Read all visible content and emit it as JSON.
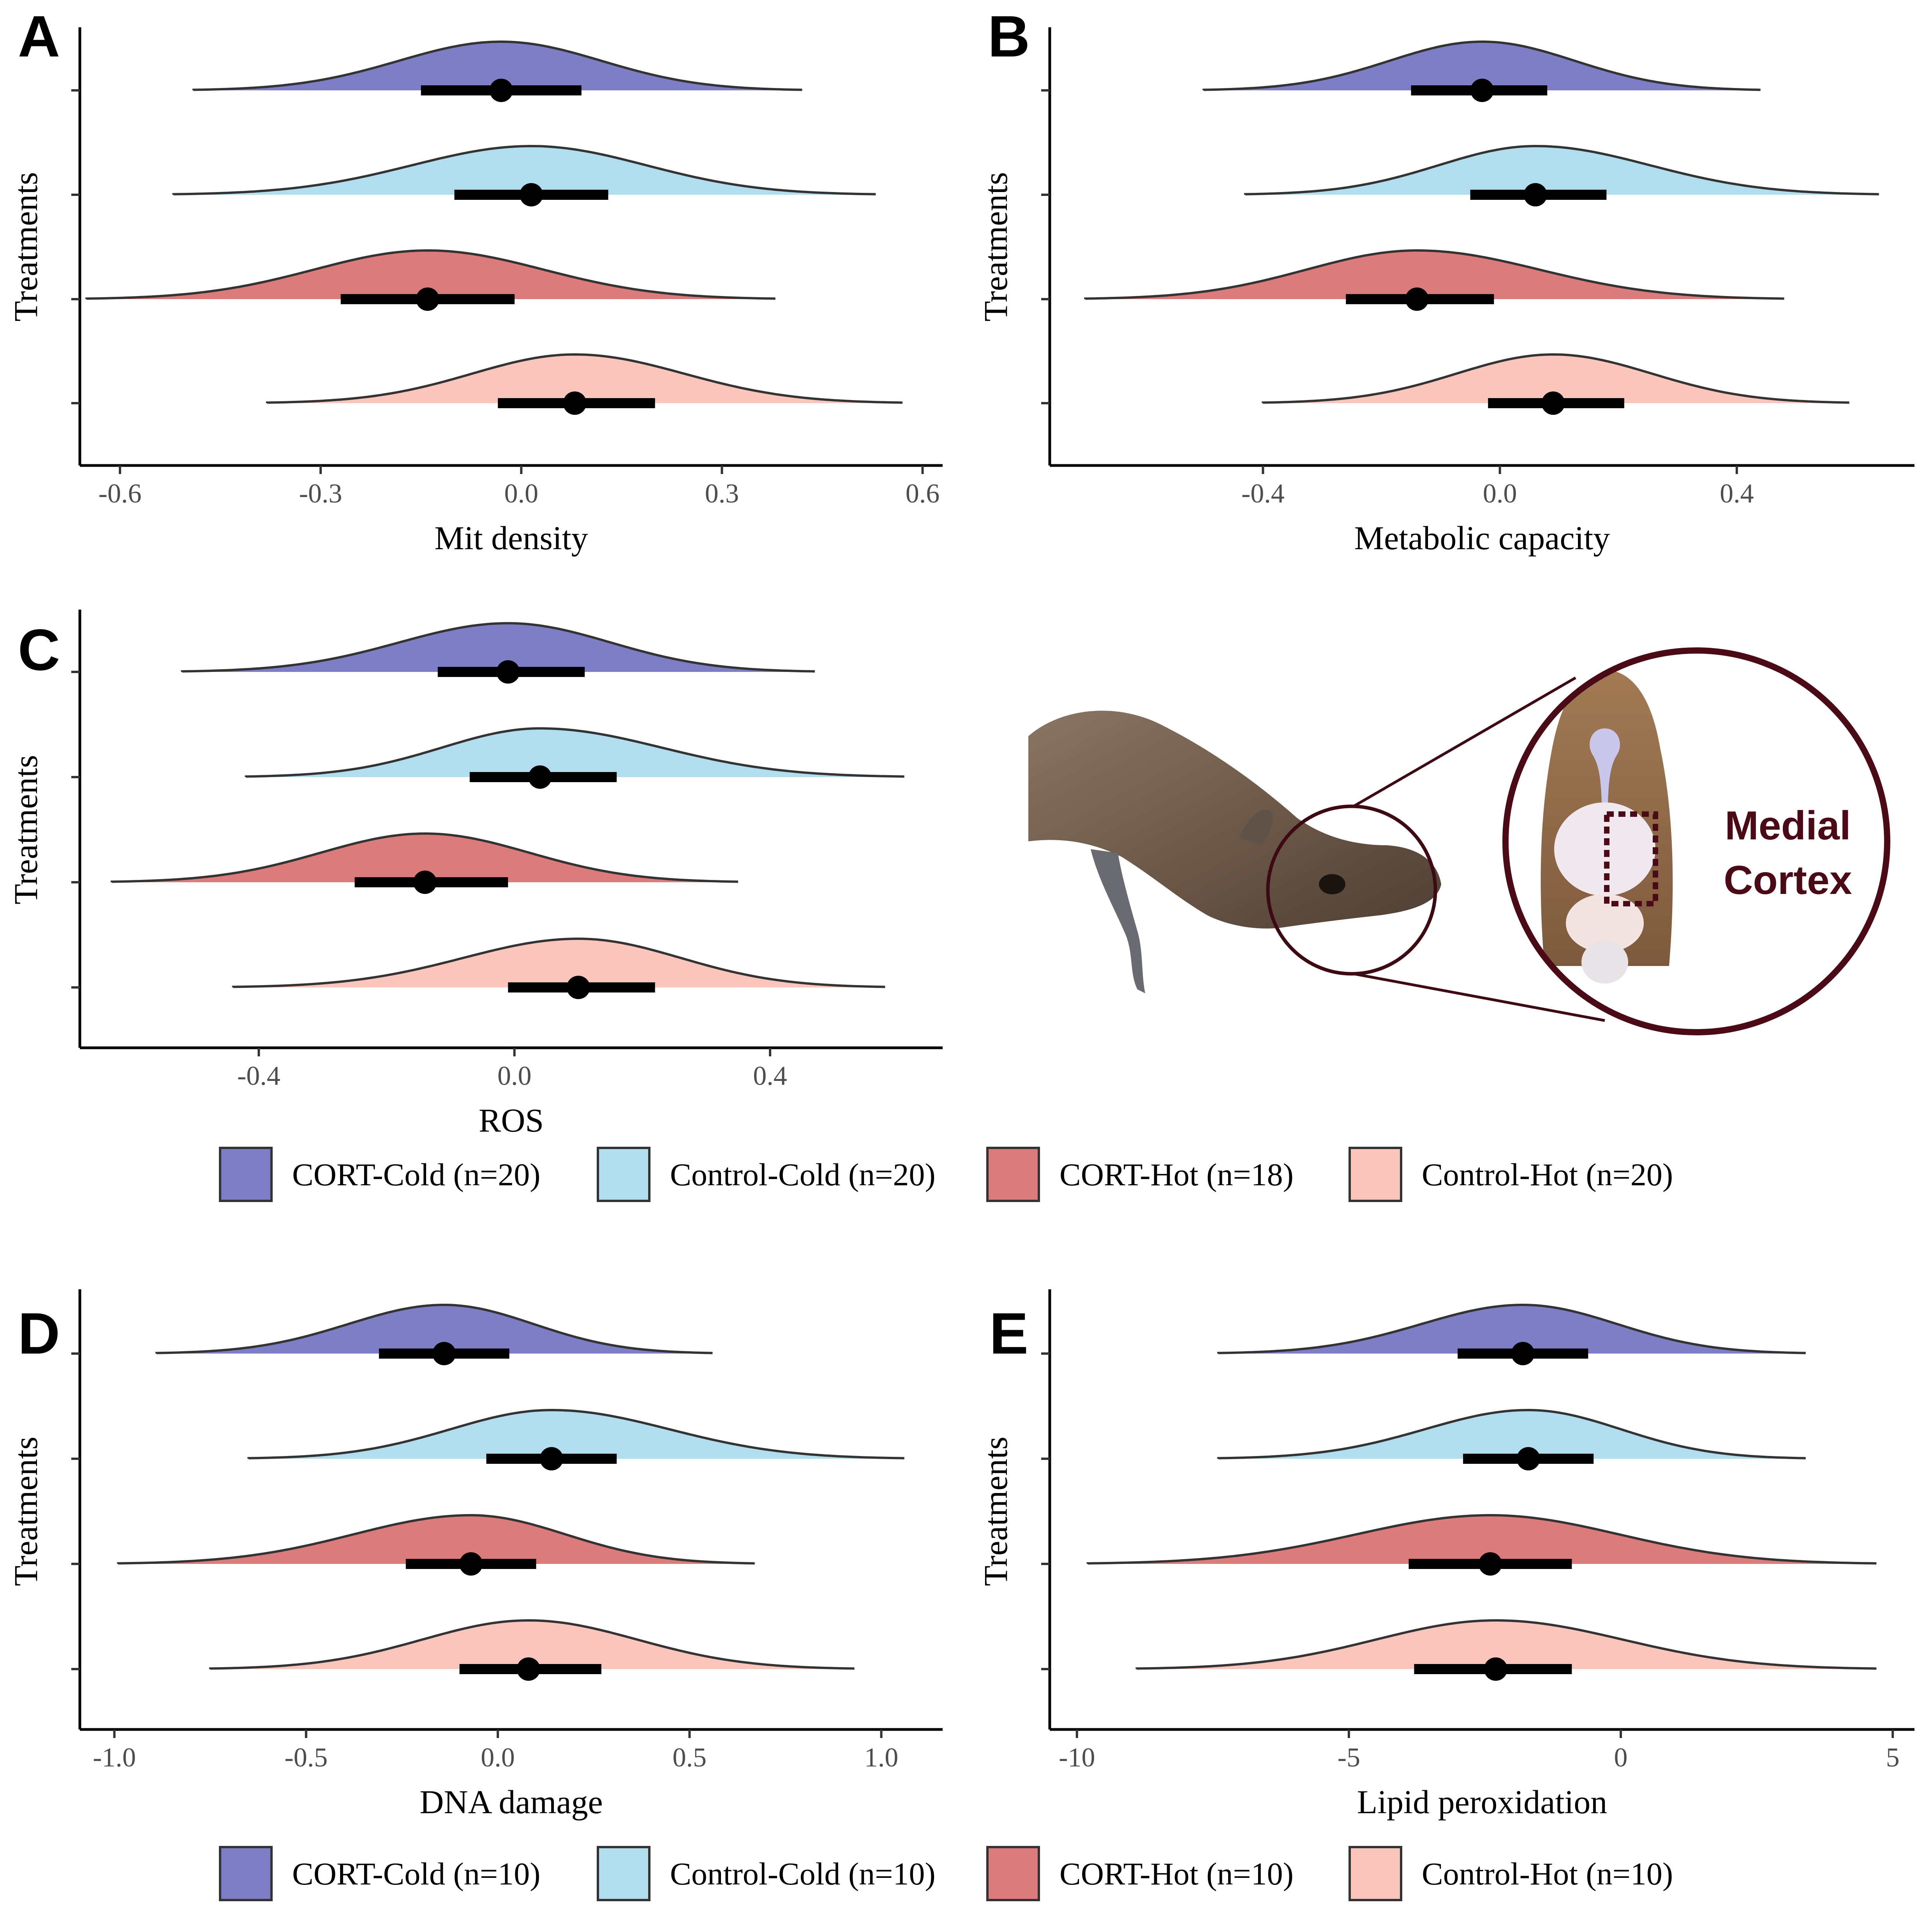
{
  "figure": {
    "callout_label_line1": "Medial",
    "callout_label_line2": "Cortex"
  },
  "legends": [
    {
      "entries": [
        {
          "label": "CORT-Cold (n=20)",
          "color": "#7e7ec6"
        },
        {
          "label": "Control-Cold (n=20)",
          "color": "#b2ddee"
        },
        {
          "label": "CORT-Hot (n=18)",
          "color": "#db7b7b"
        },
        {
          "label": "Control-Hot (n=20)",
          "color": "#f9c5bc"
        }
      ]
    },
    {
      "entries": [
        {
          "label": "CORT-Cold (n=10)",
          "color": "#7e7ec6"
        },
        {
          "label": "Control-Cold (n=10)",
          "color": "#b2ddee"
        },
        {
          "label": "CORT-Hot (n=10)",
          "color": "#db7b7b"
        },
        {
          "label": "Control-Hot (n=10)",
          "color": "#f9c5bc"
        }
      ]
    }
  ],
  "chart_data": [
    {
      "type": "ridgeline",
      "panel": "A",
      "xlabel": "Mit density",
      "ylabel": "Treatments",
      "xlim": [
        -0.66,
        0.63
      ],
      "xticks": [
        "-0.6",
        "-0.3",
        "0.0",
        "0.3",
        "0.6"
      ],
      "xtick_values": [
        -0.6,
        -0.3,
        0.0,
        0.3,
        0.6
      ],
      "series": [
        {
          "name": "CORT-Cold",
          "color": "#7e7ec6",
          "min": -0.49,
          "max": 0.42,
          "median": -0.03,
          "ci": [
            -0.15,
            0.09
          ]
        },
        {
          "name": "Control-Cold",
          "color": "#b2ddee",
          "min": -0.52,
          "max": 0.53,
          "median": 0.015,
          "ci": [
            -0.1,
            0.13
          ]
        },
        {
          "name": "CORT-Hot",
          "color": "#db7b7b",
          "min": -0.65,
          "max": 0.38,
          "median": -0.14,
          "ci": [
            -0.27,
            -0.01
          ]
        },
        {
          "name": "Control-Hot",
          "color": "#f9c5bc",
          "min": -0.38,
          "max": 0.57,
          "median": 0.08,
          "ci": [
            -0.035,
            0.2
          ]
        }
      ]
    },
    {
      "type": "ridgeline",
      "panel": "B",
      "xlabel": "Metabolic capacity",
      "ylabel": "Treatments",
      "xlim": [
        -0.76,
        0.7
      ],
      "xticks": [
        "-0.4",
        "0.0",
        "0.4"
      ],
      "xtick_values": [
        -0.4,
        0.0,
        0.4
      ],
      "series": [
        {
          "name": "CORT-Cold",
          "color": "#7e7ec6",
          "min": -0.5,
          "max": 0.44,
          "median": -0.03,
          "ci": [
            -0.15,
            0.08
          ]
        },
        {
          "name": "Control-Cold",
          "color": "#b2ddee",
          "min": -0.43,
          "max": 0.64,
          "median": 0.06,
          "ci": [
            -0.05,
            0.18
          ]
        },
        {
          "name": "CORT-Hot",
          "color": "#db7b7b",
          "min": -0.7,
          "max": 0.48,
          "median": -0.14,
          "ci": [
            -0.26,
            -0.01
          ]
        },
        {
          "name": "Control-Hot",
          "color": "#f9c5bc",
          "min": -0.4,
          "max": 0.59,
          "median": 0.09,
          "ci": [
            -0.02,
            0.21
          ]
        }
      ]
    },
    {
      "type": "ridgeline",
      "panel": "C",
      "xlabel": "ROS",
      "ylabel": "Treatments",
      "xlim": [
        -0.68,
        0.67
      ],
      "xticks": [
        "-0.4",
        "0.0",
        "0.4"
      ],
      "xtick_values": [
        -0.4,
        0.0,
        0.4
      ],
      "series": [
        {
          "name": "CORT-Cold",
          "color": "#7e7ec6",
          "min": -0.52,
          "max": 0.47,
          "median": -0.01,
          "ci": [
            -0.12,
            0.11
          ]
        },
        {
          "name": "Control-Cold",
          "color": "#b2ddee",
          "min": -0.42,
          "max": 0.61,
          "median": 0.04,
          "ci": [
            -0.07,
            0.16
          ]
        },
        {
          "name": "CORT-Hot",
          "color": "#db7b7b",
          "min": -0.63,
          "max": 0.35,
          "median": -0.14,
          "ci": [
            -0.25,
            -0.01
          ]
        },
        {
          "name": "Control-Hot",
          "color": "#f9c5bc",
          "min": -0.44,
          "max": 0.58,
          "median": 0.1,
          "ci": [
            -0.01,
            0.22
          ]
        }
      ]
    },
    {
      "type": "ridgeline",
      "panel": "D",
      "xlabel": "DNA damage",
      "ylabel": "Treatments",
      "xlim": [
        -1.09,
        1.16
      ],
      "xticks": [
        "-1.0",
        "-0.5",
        "0.0",
        "0.5",
        "1.0"
      ],
      "xtick_values": [
        -1.0,
        -0.5,
        0.0,
        0.5,
        1.0
      ],
      "series": [
        {
          "name": "CORT-Cold",
          "color": "#7e7ec6",
          "min": -0.89,
          "max": 0.56,
          "median": -0.14,
          "ci": [
            -0.31,
            0.03
          ]
        },
        {
          "name": "Control-Cold",
          "color": "#b2ddee",
          "min": -0.65,
          "max": 1.06,
          "median": 0.14,
          "ci": [
            -0.03,
            0.31
          ]
        },
        {
          "name": "CORT-Hot",
          "color": "#db7b7b",
          "min": -0.99,
          "max": 0.67,
          "median": -0.07,
          "ci": [
            -0.24,
            0.1
          ]
        },
        {
          "name": "Control-Hot",
          "color": "#f9c5bc",
          "min": -0.75,
          "max": 0.93,
          "median": 0.08,
          "ci": [
            -0.1,
            0.27
          ]
        }
      ]
    },
    {
      "type": "ridgeline",
      "panel": "E",
      "xlabel": "Lipid peroxidation",
      "ylabel": "Treatments",
      "xlim": [
        -10.5,
        5.4
      ],
      "xticks": [
        "-10",
        "-5",
        "0",
        "5"
      ],
      "xtick_values": [
        -10,
        -5,
        0,
        5
      ],
      "series": [
        {
          "name": "CORT-Cold",
          "color": "#7e7ec6",
          "min": -7.4,
          "max": 3.4,
          "median": -1.8,
          "ci": [
            -3.0,
            -0.6
          ]
        },
        {
          "name": "Control-Cold",
          "color": "#b2ddee",
          "min": -7.4,
          "max": 3.4,
          "median": -1.7,
          "ci": [
            -2.9,
            -0.5
          ]
        },
        {
          "name": "CORT-Hot",
          "color": "#db7b7b",
          "min": -9.8,
          "max": 4.7,
          "median": -2.4,
          "ci": [
            -3.9,
            -0.9
          ]
        },
        {
          "name": "Control-Hot",
          "color": "#f9c5bc",
          "min": -8.9,
          "max": 4.7,
          "median": -2.3,
          "ci": [
            -3.8,
            -0.9
          ]
        }
      ]
    }
  ]
}
